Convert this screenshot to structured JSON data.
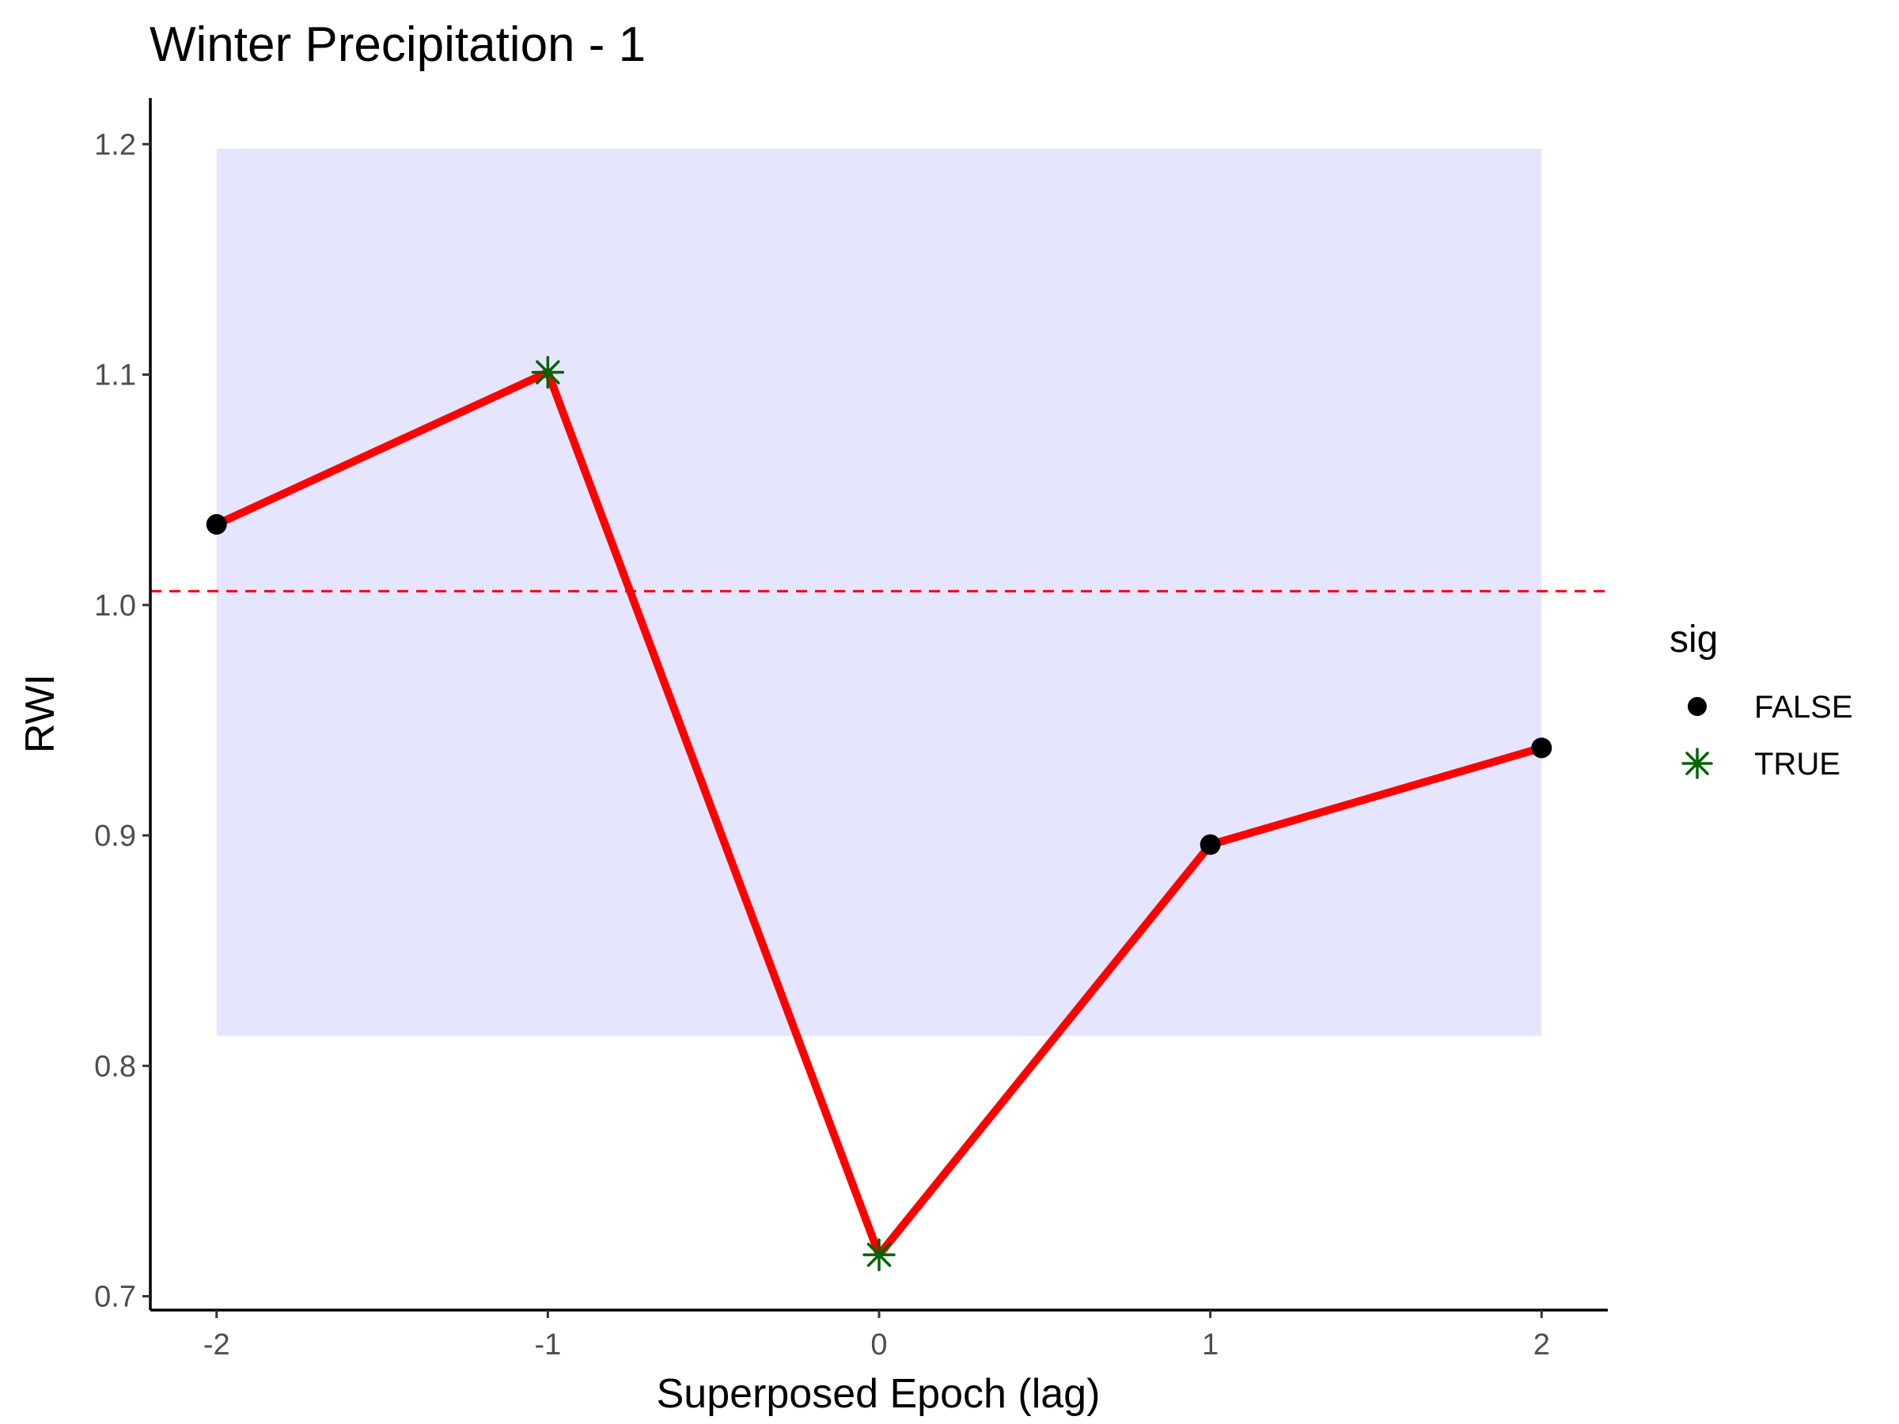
{
  "chart_data": {
    "type": "line",
    "title": "Winter Precipitation - 1",
    "xlabel": "Superposed Epoch (lag)",
    "ylabel": "RWI",
    "x": [
      -2,
      -1,
      0,
      1,
      2
    ],
    "x_tick_labels": [
      "-2",
      "-1",
      "0",
      "1",
      "2"
    ],
    "y_tick_labels": [
      "0.7",
      "0.8",
      "0.9",
      "1.0",
      "1.1",
      "1.2"
    ],
    "y_ticks": [
      0.7,
      0.8,
      0.9,
      1.0,
      1.1,
      1.2
    ],
    "xlim": [
      -2.2,
      2.2
    ],
    "ylim": [
      0.694,
      1.22
    ],
    "series": [
      {
        "values": [
          1.035,
          1.101,
          0.718,
          0.896,
          0.938
        ],
        "sig": [
          false,
          true,
          true,
          false,
          false
        ],
        "color": "#ff0000"
      }
    ],
    "confidence_band": {
      "x_range": [
        -2,
        2
      ],
      "y_range": [
        0.813,
        1.198
      ],
      "color": "#e5e5fd"
    },
    "reference_line": {
      "y": 1.006,
      "style": "dashed",
      "color": "#ff0000"
    },
    "legend": {
      "title": "sig",
      "placement": "right",
      "entries": [
        {
          "label": "FALSE",
          "marker": "circle",
          "color": "#000000"
        },
        {
          "label": "TRUE",
          "marker": "asterisk",
          "color": "#006400"
        }
      ]
    },
    "grid": false
  }
}
